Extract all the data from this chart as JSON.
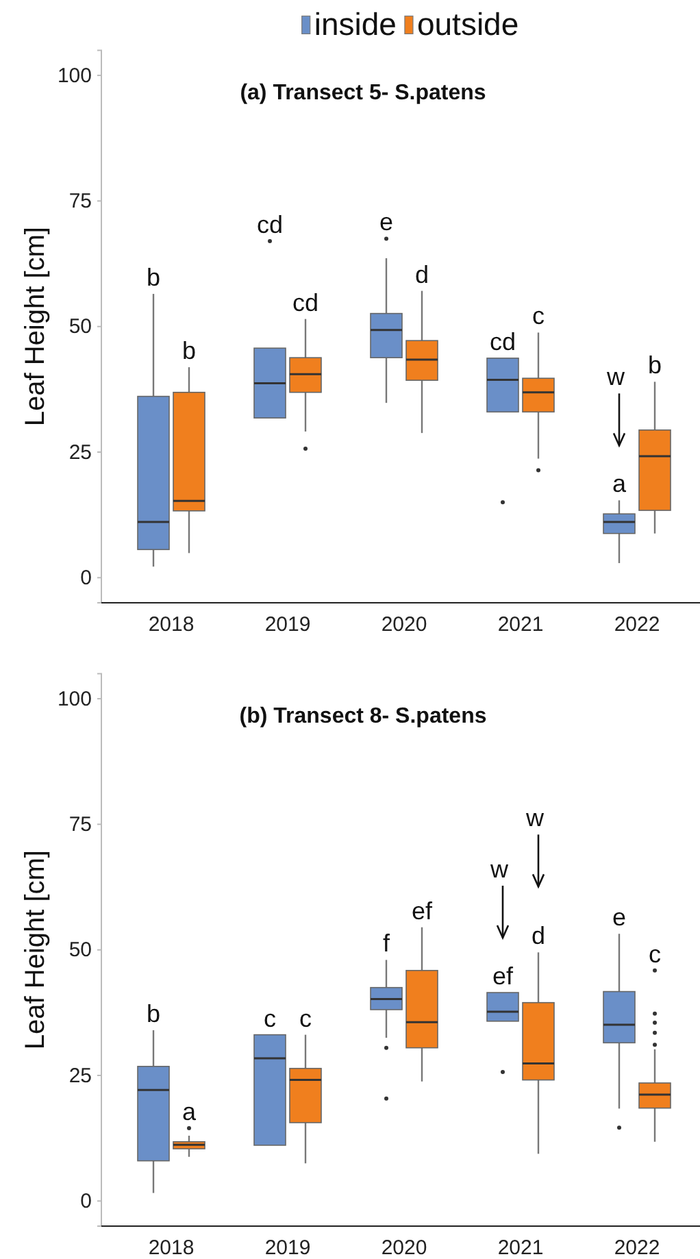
{
  "chart_data": [
    {
      "type": "box",
      "title": "(a)  Transect 5- S.patens",
      "ylabel": "Leaf Height [cm]",
      "categories": [
        "2018",
        "2019",
        "2020",
        "2021",
        "2022"
      ],
      "ylim": [
        -5,
        105
      ],
      "yticks": [
        0,
        25,
        50,
        75,
        100
      ],
      "legend": "top",
      "grid": false,
      "series": [
        {
          "name": "inside",
          "color": "#6a8fc8",
          "boxes": [
            {
              "low": 2.2,
              "q1": 5.6,
              "median": 11.1,
              "q3": 36.1,
              "high": 56.5
            },
            {
              "low": 31.8,
              "q1": 31.8,
              "median": 38.7,
              "q3": 45.7,
              "high": 45.7,
              "outliers": [
                67
              ]
            },
            {
              "low": 34.8,
              "q1": 43.8,
              "median": 49.3,
              "q3": 52.6,
              "high": 63.6,
              "outliers": [
                67.5
              ]
            },
            {
              "low": 33,
              "q1": 33,
              "median": 39.4,
              "q3": 43.7,
              "high": 43.7,
              "outliers": [
                15
              ]
            },
            {
              "low": 2.9,
              "q1": 8.8,
              "median": 11.1,
              "q3": 12.7,
              "high": 15.4
            }
          ]
        },
        {
          "name": "outside",
          "color": "#f07f1e",
          "boxes": [
            {
              "low": 4.9,
              "q1": 13.3,
              "median": 15.3,
              "q3": 36.9,
              "high": 41.9
            },
            {
              "low": 29.1,
              "q1": 36.9,
              "median": 40.5,
              "q3": 43.8,
              "high": 51.5,
              "outliers": [
                25.7
              ]
            },
            {
              "low": 28.8,
              "q1": 39.3,
              "median": 43.4,
              "q3": 47.2,
              "high": 57.1
            },
            {
              "low": 23.7,
              "q1": 33,
              "median": 36.9,
              "q3": 39.7,
              "high": 48.8,
              "outliers": [
                21.4
              ]
            },
            {
              "low": 8.8,
              "q1": 13.4,
              "median": 24.2,
              "q3": 29.4,
              "high": 39
            }
          ]
        }
      ],
      "annotations": [
        "b",
        "b",
        "cd",
        "cd",
        "e",
        "d",
        "cd",
        "c",
        "w\na",
        "b"
      ]
    },
    {
      "type": "box",
      "title": "(b)  Transect 8- S.patens",
      "ylabel": "Leaf Height [cm]",
      "categories": [
        "2018",
        "2019",
        "2020",
        "2021",
        "2022"
      ],
      "ylim": [
        -5,
        105
      ],
      "yticks": [
        0,
        25,
        50,
        75,
        100
      ],
      "grid": false,
      "series": [
        {
          "color": "#6a8fc8",
          "boxes": [
            {
              "low": 1.6,
              "q1": 8,
              "median": 22.1,
              "q3": 26.8,
              "high": 34
            },
            {
              "low": 11.1,
              "q1": 11.1,
              "median": 28.4,
              "q3": 33.1,
              "high": 33.1
            },
            {
              "low": 32.5,
              "q1": 38.1,
              "median": 40.2,
              "q3": 42.5,
              "high": 48,
              "outliers": [
                30.5,
                20.4
              ]
            },
            {
              "low": 35.8,
              "q1": 35.8,
              "median": 37.7,
              "q3": 41.5,
              "high": 41.5,
              "outliers": [
                25.7
              ]
            },
            {
              "low": 18.4,
              "q1": 31.5,
              "median": 35.1,
              "q3": 41.7,
              "high": 53.2,
              "outliers": [
                14.6
              ]
            }
          ]
        },
        {
          "color": "#f07f1e",
          "boxes": [
            {
              "low": 8.8,
              "q1": 10.4,
              "median": 11.2,
              "q3": 11.8,
              "high": 13,
              "outliers": [
                14.5
              ]
            },
            {
              "low": 7.5,
              "q1": 15.6,
              "median": 24.1,
              "q3": 26.4,
              "high": 33.1
            },
            {
              "low": 23.8,
              "q1": 30.5,
              "median": 35.6,
              "q3": 45.9,
              "high": 54.5
            },
            {
              "low": 9.4,
              "q1": 24.1,
              "median": 27.4,
              "q3": 39.5,
              "high": 49.5
            },
            {
              "low": 11.8,
              "q1": 18.5,
              "median": 21.2,
              "q3": 23.5,
              "high": 30.2,
              "outliers": [
                45.9,
                37.3,
                35.5,
                33.5,
                31.1
              ]
            }
          ]
        }
      ],
      "annotations": [
        "b",
        "a",
        "c",
        "c",
        "f",
        "ef",
        "w\nef",
        "w\nd",
        "e",
        "c"
      ]
    }
  ]
}
